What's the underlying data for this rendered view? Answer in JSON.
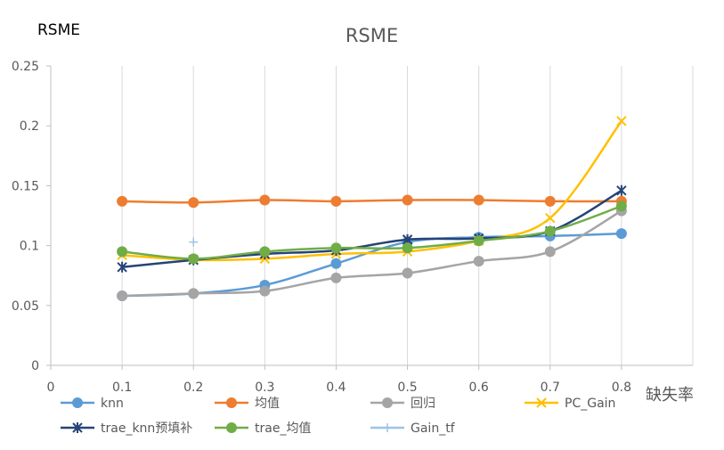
{
  "corner_label": "RSME",
  "chart_data": {
    "type": "line",
    "title": "RSME",
    "xlabel": "缺失率",
    "ylabel": "",
    "xlim": [
      0,
      0.9
    ],
    "ylim": [
      0,
      0.25
    ],
    "x_ticks": [
      "0",
      "0.1",
      "0.2",
      "0.3",
      "0.4",
      "0.5",
      "0.6",
      "0.7",
      "0.8"
    ],
    "y_ticks": [
      "0",
      "0.05",
      "0.1",
      "0.15",
      "0.2",
      "0.25"
    ],
    "x": [
      0.1,
      0.2,
      0.3,
      0.4,
      0.5,
      0.6,
      0.7,
      0.8
    ],
    "grid": "vertical",
    "legend_position": "bottom",
    "series": [
      {
        "name": "knn",
        "color": "#5B9BD5",
        "marker": "circle",
        "values": [
          0.058,
          0.06,
          0.067,
          0.085,
          0.103,
          0.107,
          0.108,
          0.11
        ]
      },
      {
        "name": "均值",
        "color": "#ED7D31",
        "marker": "circle",
        "values": [
          0.137,
          0.136,
          0.138,
          0.137,
          0.138,
          0.138,
          0.137,
          0.137
        ]
      },
      {
        "name": "回归",
        "color": "#A5A5A5",
        "marker": "circle",
        "values": [
          0.058,
          0.06,
          0.062,
          0.073,
          0.077,
          0.087,
          0.095,
          0.129
        ]
      },
      {
        "name": "PC_Gain",
        "color": "#FFC000",
        "marker": "x",
        "values": [
          0.092,
          0.088,
          0.089,
          0.093,
          0.095,
          0.104,
          0.123,
          0.204
        ]
      },
      {
        "name": "trae_knn预填补",
        "color": "#264478",
        "marker": "star",
        "values": [
          0.082,
          0.088,
          0.093,
          0.096,
          0.105,
          0.106,
          0.112,
          0.146
        ]
      },
      {
        "name": "trae_均值",
        "color": "#70AD47",
        "marker": "circle",
        "values": [
          0.095,
          0.089,
          0.095,
          0.098,
          0.098,
          0.104,
          0.112,
          0.133
        ]
      },
      {
        "name": "Gain_tf",
        "color": "#9DC3E6",
        "marker": "plus",
        "values": [
          null,
          0.103,
          null,
          null,
          null,
          null,
          null,
          null
        ]
      }
    ]
  }
}
